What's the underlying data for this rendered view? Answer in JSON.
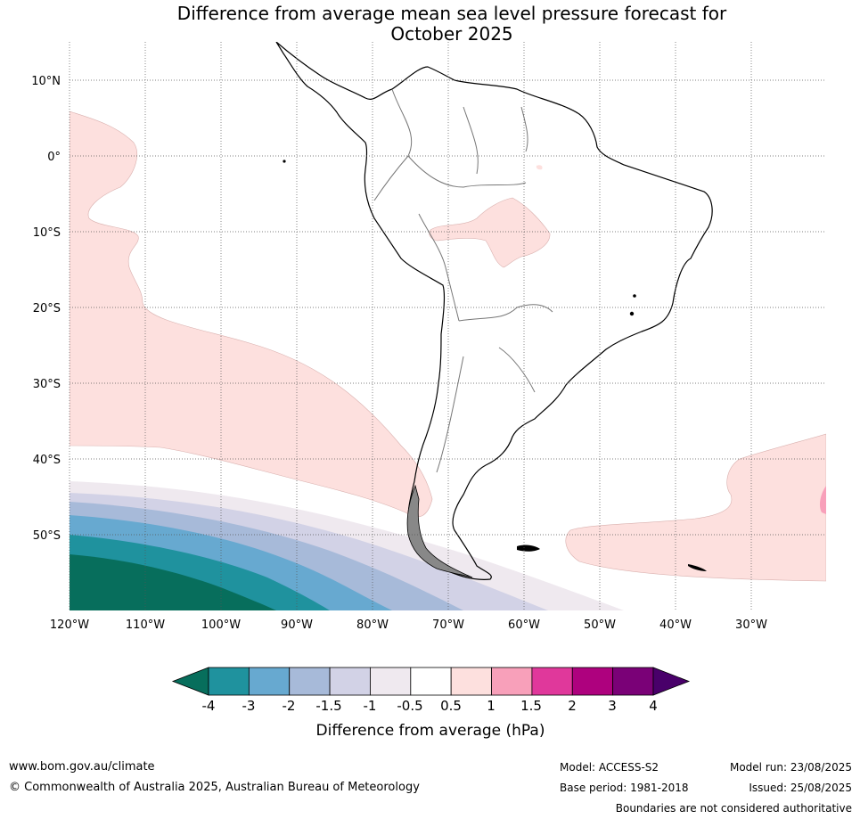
{
  "title_line1": "Difference from average mean sea level pressure forecast for",
  "title_line2": "October 2025",
  "lat_labels": [
    "10°N",
    "0°",
    "10°S",
    "20°S",
    "30°S",
    "40°S",
    "50°S"
  ],
  "lon_labels": [
    "120°W",
    "110°W",
    "100°W",
    "90°W",
    "80°W",
    "70°W",
    "60°W",
    "50°W",
    "40°W",
    "30°W"
  ],
  "legend": {
    "title": "Difference from average (hPa)",
    "ticks": [
      "-4",
      "-3",
      "-2",
      "-1.5",
      "-1",
      "-0.5",
      "0.5",
      "1",
      "1.5",
      "2",
      "3",
      "4"
    ],
    "colors": [
      "#076e5c",
      "#1f929e",
      "#67a9d0",
      "#a7bad9",
      "#d2d2e6",
      "#efe9ef",
      "#ffffff",
      "#fde0de",
      "#f8a0ba",
      "#e0389b",
      "#ae017e",
      "#7a0177",
      "#49006a"
    ]
  },
  "footer": {
    "site": "www.bom.gov.au/climate",
    "copyright": "© Commonwealth of Australia 2025, Australian Bureau of Meteorology",
    "model": "Model: ACCESS-S2",
    "base_period": "Base period: 1981-2018",
    "model_run": "Model run: 23/08/2025",
    "issued": "Issued: 25/08/2025",
    "disclaimer": "Boundaries are not considered authoritative"
  }
}
